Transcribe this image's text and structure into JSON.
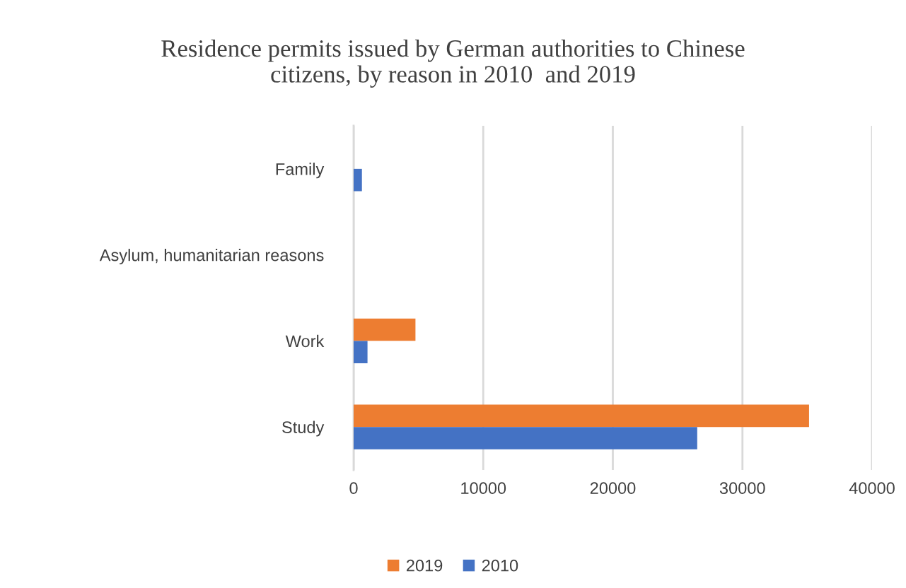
{
  "chart_data": {
    "type": "bar",
    "orientation": "horizontal",
    "title": "Residence permits issued by German authorities to Chinese\ncitizens, by reason in 2010  and 2019",
    "categories": [
      "Family",
      "Asylum, humanitarian reasons",
      "Work",
      "Study"
    ],
    "series": [
      {
        "name": "2019",
        "color": "#ed7d31",
        "values": [
          null,
          null,
          4770,
          35140
        ]
      },
      {
        "name": "2010",
        "color": "#4472c4",
        "values": [
          640,
          null,
          1070,
          26510
        ]
      }
    ],
    "xlim": [
      0,
      40000
    ],
    "xticks": [
      0,
      10000,
      20000,
      30000,
      40000
    ],
    "grid": "x",
    "legend": "bottom"
  }
}
